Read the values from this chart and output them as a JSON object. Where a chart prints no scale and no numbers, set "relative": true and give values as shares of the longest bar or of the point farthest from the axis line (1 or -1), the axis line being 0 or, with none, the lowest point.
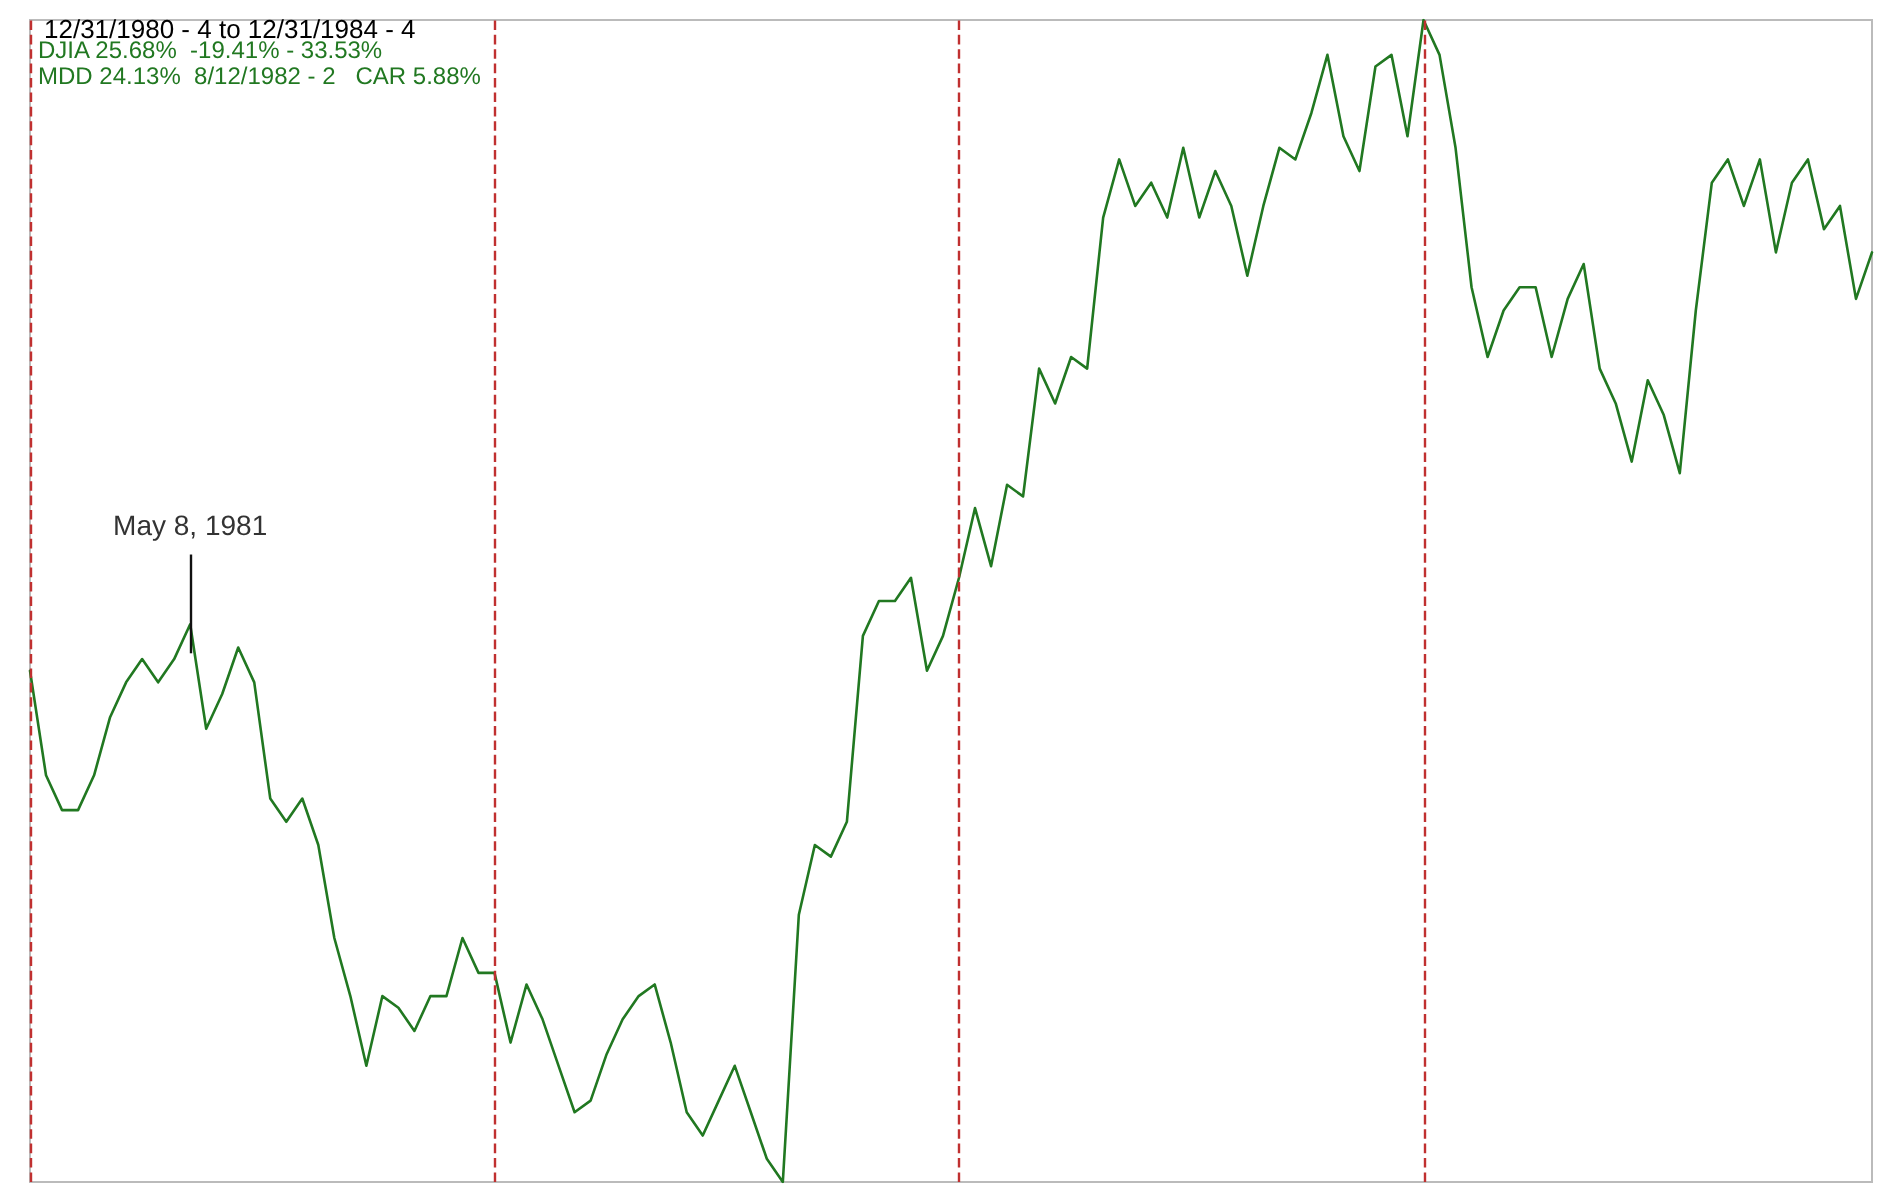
{
  "chart_data": {
    "type": "line",
    "title": "12/31/1980 - 4 to 12/31/1984 - 4",
    "relative": true,
    "marker": "none",
    "line_style": "solid",
    "annotations": [
      "DJIA 25.68%  -19.41% - 33.53%",
      "MDD 24.13%  8/12/1982 - 2   CAR 5.88%",
      {
        "text": "May 8, 1981",
        "y": 0.48
      }
    ],
    "categories": [
      null,
      null,
      null,
      null,
      null,
      null,
      null,
      null,
      null,
      null,
      null,
      null,
      null,
      null,
      null,
      null,
      null,
      null,
      null,
      null,
      null,
      null,
      null,
      null,
      null,
      null,
      null,
      null,
      null,
      null,
      null,
      null,
      null,
      null,
      null,
      null,
      null,
      null,
      null,
      null,
      null,
      null,
      null,
      null,
      null,
      null,
      null,
      null,
      null,
      null,
      null,
      null,
      null,
      null,
      null,
      null,
      null,
      null,
      null,
      null,
      null,
      null,
      null,
      null,
      null,
      null,
      null,
      null,
      null,
      null,
      null,
      null,
      null,
      null,
      null,
      null,
      null,
      null,
      null,
      null,
      null,
      null,
      null,
      null,
      null,
      null,
      null,
      null,
      null,
      null,
      null,
      null,
      null,
      null,
      null,
      null,
      null,
      null,
      null,
      null,
      null,
      null,
      null,
      null,
      null,
      null,
      null,
      null,
      null,
      null,
      null,
      null,
      null,
      null,
      null,
      null
    ],
    "series": [
      {
        "color": "#217821",
        "values": [
          0.44,
          0.35,
          0.32,
          0.32,
          0.35,
          0.4,
          0.43,
          0.45,
          0.43,
          0.45,
          0.48,
          0.39,
          0.42,
          0.46,
          0.43,
          0.33,
          0.31,
          0.33,
          0.29,
          0.21,
          0.16,
          0.1,
          0.16,
          0.15,
          0.13,
          0.16,
          0.16,
          0.21,
          0.18,
          0.18,
          0.12,
          0.17,
          0.14,
          0.1,
          0.06,
          0.07,
          0.11,
          0.14,
          0.16,
          0.17,
          0.12,
          0.06,
          0.04,
          0.07,
          0.1,
          0.06,
          0.02,
          0,
          0.23,
          0.29,
          0.28,
          0.31,
          0.47,
          0.5,
          0.5,
          0.52,
          0.44,
          0.47,
          0.52,
          0.58,
          0.53,
          0.6,
          0.59,
          0.7,
          0.67,
          0.71,
          0.7,
          0.83,
          0.88,
          0.84,
          0.86,
          0.83,
          0.89,
          0.83,
          0.87,
          0.84,
          0.78,
          0.84,
          0.89,
          0.88,
          0.92,
          0.97,
          0.9,
          0.87,
          0.96,
          0.97,
          0.9,
          1,
          0.97,
          0.89,
          0.77,
          0.71,
          0.75,
          0.77,
          0.77,
          0.71,
          0.76,
          0.79,
          0.7,
          0.67,
          0.62,
          0.69,
          0.66,
          0.61,
          0.75,
          0.86,
          0.88,
          0.84,
          0.88,
          0.8,
          0.86,
          0.88,
          0.82,
          0.84,
          0.76,
          0.8
        ]
      }
    ]
  }
}
